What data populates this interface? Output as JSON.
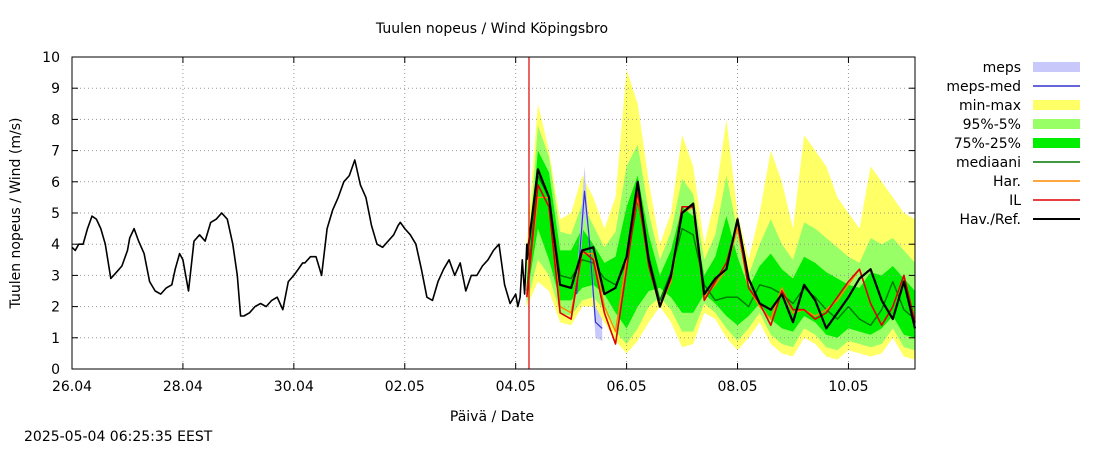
{
  "chart_data": {
    "type": "line",
    "title": "Tuulen nopeus / Wind  Köpingsbro",
    "xlabel": "Päivä / Date",
    "ylabel": "Tuulen nopeus / Wind (m/s)",
    "ylim": [
      0,
      10
    ],
    "xlim": [
      0,
      7.6
    ],
    "x_ticks": [
      {
        "x": 0,
        "label": "26.04"
      },
      {
        "x": 1,
        "label": "28.04"
      },
      {
        "x": 2,
        "label": "30.04"
      },
      {
        "x": 3,
        "label": "02.05"
      },
      {
        "x": 4,
        "label": "04.05"
      },
      {
        "x": 5,
        "label": "06.05"
      },
      {
        "x": 6,
        "label": "08.05"
      },
      {
        "x": 7,
        "label": "10.05"
      }
    ],
    "y_ticks": [
      0,
      1,
      2,
      3,
      4,
      5,
      6,
      7,
      8,
      9,
      10
    ],
    "grid": true,
    "now_marker_x": 4.12,
    "legend": [
      {
        "label": "meps",
        "kind": "box",
        "color": "#c8c8fa"
      },
      {
        "label": "meps-med",
        "kind": "line",
        "color": "#3333cc"
      },
      {
        "label": "min-max",
        "kind": "box",
        "color": "#ffff66"
      },
      {
        "label": "95%-5%",
        "kind": "box",
        "color": "#99ff66"
      },
      {
        "label": "75%-25%",
        "kind": "box",
        "color": "#00ee00"
      },
      {
        "label": "mediaani",
        "kind": "line",
        "color": "#007700"
      },
      {
        "label": "Har.",
        "kind": "line",
        "color": "#ff8800"
      },
      {
        "label": "IL",
        "kind": "line",
        "color": "#dd0000"
      },
      {
        "label": "Hav./Ref.",
        "kind": "line",
        "color": "#000000"
      }
    ],
    "observed": {
      "x": [
        0.0,
        0.03,
        0.06,
        0.1,
        0.14,
        0.18,
        0.22,
        0.26,
        0.3,
        0.35,
        0.4,
        0.45,
        0.5,
        0.52,
        0.56,
        0.6,
        0.65,
        0.7,
        0.75,
        0.8,
        0.85,
        0.9,
        0.93,
        0.97,
        1.0,
        1.05,
        1.1,
        1.15,
        1.2,
        1.25,
        1.3,
        1.35,
        1.4,
        1.45,
        1.49,
        1.52,
        1.55,
        1.6,
        1.65,
        1.7,
        1.75,
        1.8,
        1.85,
        1.9,
        1.95,
        2.0,
        2.04,
        2.06,
        2.08,
        2.1,
        2.15,
        2.2,
        2.25,
        2.3,
        2.35,
        2.4,
        2.45,
        2.5,
        2.55,
        2.6,
        2.65,
        2.7,
        2.75,
        2.8,
        2.85,
        2.9,
        2.94,
        2.96,
        3.0,
        3.05,
        3.1,
        3.15,
        3.2,
        3.25,
        3.3,
        3.35,
        3.4,
        3.45,
        3.5,
        3.55,
        3.6,
        3.65,
        3.7,
        3.75,
        3.8,
        3.85,
        3.9,
        3.95,
        4.0,
        4.02,
        4.04,
        4.06,
        4.08,
        4.1,
        4.12
      ],
      "y": [
        3.9,
        3.8,
        4.0,
        4.0,
        4.5,
        4.9,
        4.8,
        4.5,
        4.0,
        2.9,
        3.1,
        3.3,
        3.8,
        4.2,
        4.5,
        4.1,
        3.7,
        2.8,
        2.5,
        2.4,
        2.6,
        2.7,
        3.2,
        3.7,
        3.5,
        2.5,
        4.1,
        4.3,
        4.1,
        4.7,
        4.8,
        5.0,
        4.8,
        4.0,
        3.0,
        1.7,
        1.7,
        1.8,
        2.0,
        2.1,
        2.0,
        2.2,
        2.3,
        1.9,
        2.8,
        3.0,
        3.2,
        3.3,
        3.4,
        3.4,
        3.6,
        3.6,
        3.0,
        4.5,
        5.1,
        5.5,
        6.0,
        6.2,
        6.7,
        5.9,
        5.5,
        4.6,
        4.0,
        3.9,
        4.1,
        4.3,
        4.6,
        4.7,
        4.5,
        4.3,
        4.0,
        3.2,
        2.3,
        2.2,
        2.8,
        3.2,
        3.5,
        3.0,
        3.4,
        2.5,
        3.0,
        3.0,
        3.3,
        3.5,
        3.8,
        4.0,
        2.7,
        2.1,
        2.4,
        2.0,
        2.3,
        3.5,
        2.4,
        4.0,
        3.8
      ]
    },
    "forecast_x": [
      4.1,
      4.2,
      4.3,
      4.4,
      4.5,
      4.6,
      4.7,
      4.8,
      4.9,
      5.0,
      5.1,
      5.2,
      5.3,
      5.4,
      5.5,
      5.6,
      5.7,
      5.8,
      5.9,
      6.0,
      6.1,
      6.2,
      6.3,
      6.4,
      6.5,
      6.6,
      6.7,
      6.8,
      6.9,
      7.0,
      7.1,
      7.2,
      7.3,
      7.4,
      7.5,
      7.6
    ],
    "series": [
      {
        "name": "min-max",
        "low": [
          2.0,
          2.8,
          2.5,
          1.5,
          1.4,
          2.0,
          2.0,
          1.5,
          0.9,
          0.5,
          0.9,
          1.5,
          2.0,
          1.5,
          0.7,
          0.8,
          1.8,
          1.6,
          1.0,
          0.6,
          1.0,
          1.5,
          0.8,
          0.5,
          0.4,
          1.0,
          0.8,
          0.4,
          0.3,
          0.6,
          0.5,
          0.4,
          0.5,
          1.0,
          0.4,
          0.3
        ],
        "high": [
          4.0,
          8.5,
          7.0,
          4.8,
          5.0,
          6.2,
          5.5,
          4.5,
          5.5,
          9.6,
          8.5,
          6.0,
          4.0,
          5.0,
          7.5,
          6.5,
          4.0,
          5.5,
          8.0,
          5.0,
          3.5,
          5.0,
          7.0,
          6.0,
          4.5,
          7.5,
          7.0,
          6.5,
          5.5,
          5.0,
          4.5,
          6.5,
          6.0,
          5.5,
          5.0,
          4.8
        ]
      },
      {
        "name": "95%-5%",
        "low": [
          2.1,
          3.5,
          3.0,
          1.8,
          1.7,
          2.2,
          2.3,
          1.9,
          1.2,
          0.8,
          1.3,
          2.0,
          2.3,
          1.9,
          1.2,
          1.2,
          2.1,
          1.8,
          1.3,
          0.9,
          1.3,
          1.8,
          1.1,
          0.8,
          0.7,
          1.3,
          1.1,
          0.7,
          0.6,
          0.9,
          0.8,
          0.7,
          0.8,
          1.3,
          0.7,
          0.6
        ],
        "high": [
          3.2,
          7.8,
          6.8,
          4.4,
          4.3,
          5.3,
          4.6,
          3.9,
          4.4,
          6.5,
          7.2,
          5.0,
          3.5,
          4.4,
          6.1,
          5.6,
          3.5,
          4.3,
          6.2,
          4.4,
          3.0,
          4.0,
          4.8,
          4.0,
          3.5,
          4.7,
          4.5,
          4.2,
          3.9,
          3.6,
          3.4,
          4.2,
          4.0,
          4.2,
          3.8,
          3.4
        ]
      },
      {
        "name": "75%-25%",
        "low": [
          2.3,
          4.5,
          3.5,
          2.2,
          2.2,
          2.6,
          2.7,
          2.4,
          1.8,
          1.3,
          2.0,
          2.5,
          2.6,
          2.3,
          1.8,
          1.8,
          2.4,
          2.1,
          1.7,
          1.4,
          1.7,
          2.1,
          1.6,
          1.3,
          1.2,
          1.7,
          1.5,
          1.1,
          1.0,
          1.3,
          1.2,
          1.1,
          1.3,
          1.7,
          1.1,
          1.0
        ],
        "high": [
          2.8,
          7.0,
          6.3,
          3.8,
          3.8,
          4.5,
          4.0,
          3.4,
          3.6,
          5.2,
          6.2,
          4.3,
          3.0,
          3.8,
          5.2,
          4.9,
          3.0,
          3.6,
          4.9,
          3.6,
          2.6,
          3.3,
          3.7,
          3.2,
          2.9,
          3.6,
          3.4,
          3.1,
          2.9,
          2.7,
          2.6,
          3.1,
          3.0,
          3.3,
          2.9,
          2.5
        ]
      },
      {
        "name": "mediaani",
        "values": [
          2.5,
          6.2,
          5.5,
          3.0,
          2.9,
          3.5,
          3.4,
          2.9,
          2.7,
          3.4,
          5.4,
          3.6,
          2.2,
          3.1,
          4.5,
          4.3,
          2.7,
          2.2,
          2.3,
          2.3,
          2.0,
          2.7,
          2.6,
          2.4,
          2.1,
          2.6,
          2.3,
          1.9,
          1.6,
          2.0,
          1.6,
          1.4,
          1.9,
          2.8,
          1.9,
          1.6
        ]
      },
      {
        "name": "meps",
        "low": [
          2.2,
          5.0,
          4.2,
          1.0,
          0.9
        ],
        "high": [
          2.8,
          6.5,
          4.5,
          2.0,
          1.6
        ]
      },
      {
        "name": "meps-med",
        "values": [
          2.4,
          5.7,
          4.3,
          1.5,
          1.3
        ]
      },
      {
        "name": "Har.",
        "values": [
          2.4,
          5.5,
          5.5,
          2.0,
          1.8,
          3.7,
          3.7,
          2.0,
          1.2,
          3.5,
          5.5,
          3.5,
          2.0,
          2.8,
          5.0,
          5.2,
          2.3,
          2.7,
          3.2,
          4.5,
          2.6,
          2.0,
          1.6,
          2.6,
          1.8,
          1.9,
          1.7,
          1.9,
          2.2,
          2.7,
          3.2,
          2.1,
          1.4,
          2.0,
          3.0,
          1.5
        ]
      },
      {
        "name": "IL",
        "values": [
          2.3,
          5.9,
          5.2,
          1.8,
          1.6,
          3.8,
          3.5,
          1.8,
          0.8,
          3.2,
          5.7,
          3.3,
          2.0,
          2.9,
          5.2,
          5.2,
          2.2,
          2.8,
          3.4,
          4.7,
          2.6,
          2.1,
          1.4,
          2.5,
          1.9,
          1.9,
          1.6,
          1.8,
          2.3,
          2.8,
          3.2,
          2.1,
          1.4,
          2.0,
          3.0,
          1.5
        ]
      },
      {
        "name": "Hav./Ref.",
        "values": [
          3.5,
          6.4,
          5.5,
          2.7,
          2.6,
          3.8,
          3.9,
          2.4,
          2.6,
          3.6,
          6.0,
          3.5,
          2.0,
          3.0,
          5.0,
          5.3,
          2.4,
          2.9,
          3.2,
          4.8,
          2.9,
          2.1,
          1.9,
          2.4,
          1.5,
          2.7,
          2.2,
          1.3,
          1.8,
          2.3,
          2.9,
          3.2,
          2.2,
          1.6,
          2.8,
          1.3
        ]
      }
    ]
  },
  "footer": {
    "timestamp": "2025-05-04 06:25:35 EEST"
  }
}
